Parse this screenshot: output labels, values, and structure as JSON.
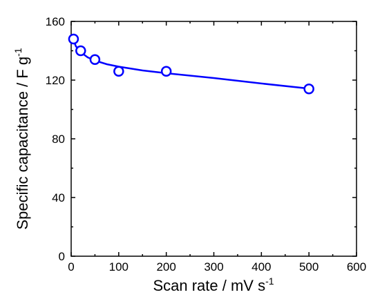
{
  "chart_data": {
    "type": "scatter",
    "xlabel": "Scan rate / mV s",
    "xlabel_sup": "-1",
    "ylabel": "Specific capacitance / F g",
    "ylabel_sup": "-1",
    "xlim": [
      0,
      600
    ],
    "ylim": [
      0,
      160
    ],
    "xticks": [
      0,
      100,
      200,
      300,
      400,
      500,
      600
    ],
    "yticks": [
      0,
      40,
      80,
      120,
      160
    ],
    "grid": false,
    "legend": "none",
    "series": [
      {
        "marker": "open-circle",
        "color": "#0000ff",
        "x": [
          5,
          20,
          50,
          100,
          200,
          500
        ],
        "y": [
          148,
          140,
          134,
          126,
          126,
          114
        ]
      }
    ],
    "fit_line": {
      "color": "#0000ff",
      "x": [
        5,
        10,
        20,
        35,
        50,
        75,
        100,
        150,
        200,
        300,
        400,
        500
      ],
      "y": [
        147,
        143,
        139,
        135.5,
        133.3,
        130.8,
        129.2,
        126.6,
        124.7,
        121.4,
        117.7,
        114.2
      ]
    }
  }
}
